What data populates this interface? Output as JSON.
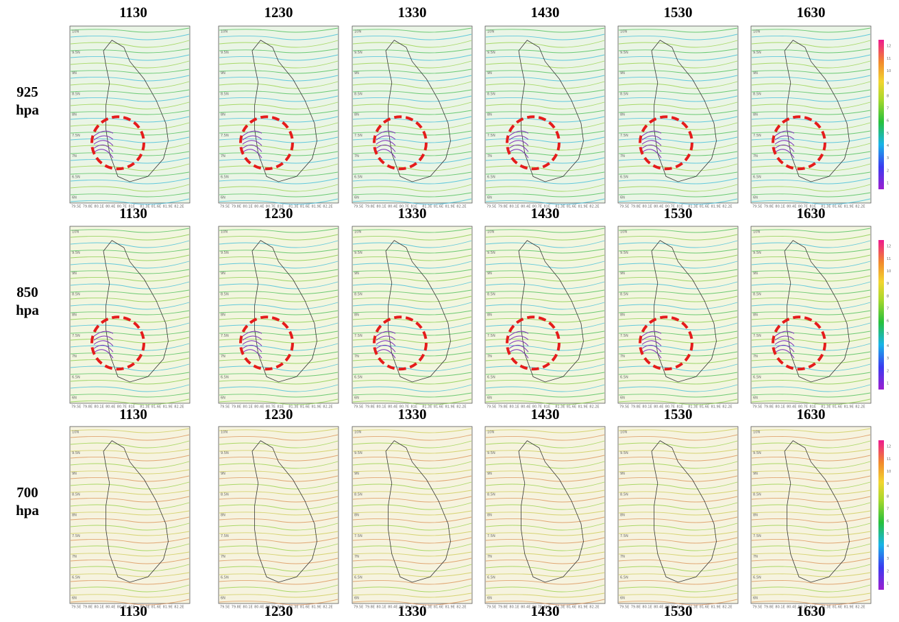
{
  "column_labels": [
    "1130",
    "1230",
    "1330",
    "1430",
    "1530",
    "1630"
  ],
  "rows": [
    {
      "level": "925",
      "unit": "hpa"
    },
    {
      "level": "850",
      "unit": "hpa"
    },
    {
      "level": "700",
      "unit": "hpa"
    }
  ],
  "lat_labels": [
    "10N",
    "9.5N",
    "9N",
    "8.5N",
    "8N",
    "7.5N",
    "7N",
    "6.5N",
    "6N"
  ],
  "lon_labels": [
    "79.5E",
    "79.8E",
    "80.1E",
    "80.4E",
    "80.7E",
    "81E",
    "81.3E",
    "81.6E",
    "81.9E",
    "82.2E"
  ],
  "colorbar_labels": [
    "1",
    "2",
    "3",
    "4",
    "5",
    "6",
    "7",
    "8",
    "9",
    "10",
    "11",
    "12"
  ]
}
